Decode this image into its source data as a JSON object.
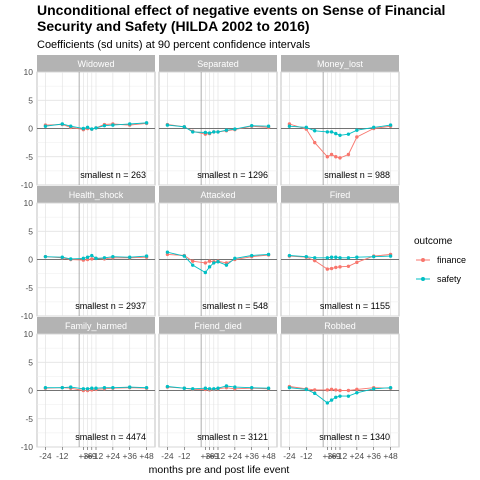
{
  "chart_data": {
    "type": "line",
    "title": "Unconditional effect of negative events on Sense of Financial Security and Safety (HILDA 2002 to 2016)",
    "title_lines": [
      "Unconditional effect of negative events on Sense of Financial",
      "Security and Safety (HILDA 2002 to 2016)"
    ],
    "subtitle": "Coefficients (sd units) at 90 percent confidence intervals",
    "xlabel": "months pre and post life event",
    "ylabel": "",
    "ylim": [
      -10,
      10
    ],
    "yticks": [
      -10,
      -5,
      0,
      5,
      10
    ],
    "xlim": [
      -30,
      54
    ],
    "x": [
      -24,
      -12,
      -6,
      3,
      6,
      9,
      12,
      18,
      24,
      36,
      48
    ],
    "xticks": [
      -24,
      -12,
      3,
      6,
      9,
      12,
      24,
      36,
      48
    ],
    "xtick_labels": [
      "-24",
      "-12",
      "+3",
      "+6",
      "+9",
      "+12",
      "+24",
      "+36",
      "+48"
    ],
    "event_line_x": 0,
    "grid": true,
    "legend": {
      "title": "outcome",
      "position": "right",
      "entries": [
        {
          "label": "finance",
          "color": "#F8766D"
        },
        {
          "label": "safety",
          "color": "#00BFC4"
        }
      ]
    },
    "panels": [
      {
        "name": "Widowed",
        "n_label": "smallest n = 263",
        "series": [
          {
            "name": "finance",
            "values": [
              0.6,
              0.7,
              0.2,
              -0.2,
              0.0,
              -0.1,
              0.1,
              0.7,
              0.8,
              0.6,
              0.9
            ]
          },
          {
            "name": "safety",
            "values": [
              0.4,
              0.8,
              0.4,
              0.0,
              0.2,
              -0.1,
              0.1,
              0.5,
              0.6,
              0.8,
              1.0
            ]
          }
        ]
      },
      {
        "name": "Separated",
        "n_label": "smallest n = 1296",
        "series": [
          {
            "name": "finance",
            "values": [
              0.7,
              0.3,
              -0.5,
              -1.0,
              -0.9,
              -0.6,
              -0.6,
              -0.4,
              -0.2,
              0.4,
              0.2
            ]
          },
          {
            "name": "safety",
            "values": [
              0.6,
              0.3,
              -0.6,
              -0.7,
              -0.8,
              -0.6,
              -0.6,
              -0.3,
              -0.1,
              0.5,
              0.4
            ]
          }
        ]
      },
      {
        "name": "Money_lost",
        "n_label": "smallest n = 988",
        "series": [
          {
            "name": "finance",
            "values": [
              0.8,
              -0.1,
              -2.5,
              -5.0,
              -4.6,
              -5.0,
              -5.2,
              -4.6,
              -1.5,
              0.0,
              0.4
            ]
          },
          {
            "name": "safety",
            "values": [
              0.4,
              0.2,
              -0.4,
              -0.6,
              -0.6,
              -0.9,
              -1.2,
              -1.0,
              -0.3,
              0.2,
              0.6
            ]
          }
        ]
      },
      {
        "name": "Health_shock",
        "n_label": "smallest n = 2937",
        "series": [
          {
            "name": "finance",
            "values": [
              0.5,
              0.3,
              0.0,
              -0.1,
              0.0,
              0.1,
              0.2,
              0.1,
              0.3,
              0.3,
              0.4
            ]
          },
          {
            "name": "safety",
            "values": [
              0.5,
              0.4,
              0.1,
              0.2,
              0.4,
              0.7,
              0.2,
              0.3,
              0.5,
              0.4,
              0.6
            ]
          }
        ]
      },
      {
        "name": "Attacked",
        "n_label": "smallest n = 548",
        "series": [
          {
            "name": "finance",
            "values": [
              0.9,
              0.7,
              -0.3,
              -0.6,
              -0.3,
              -0.4,
              -0.3,
              -0.6,
              0.0,
              0.5,
              0.8
            ]
          },
          {
            "name": "safety",
            "values": [
              1.3,
              0.6,
              -1.0,
              -2.3,
              -1.3,
              -0.6,
              -0.4,
              -1.0,
              0.2,
              0.7,
              0.9
            ]
          }
        ]
      },
      {
        "name": "Fired",
        "n_label": "smallest n = 1155",
        "series": [
          {
            "name": "finance",
            "values": [
              0.6,
              0.4,
              -0.2,
              -1.7,
              -1.6,
              -1.4,
              -1.3,
              -1.2,
              -0.5,
              0.6,
              0.9
            ]
          },
          {
            "name": "safety",
            "values": [
              0.7,
              0.5,
              0.3,
              0.3,
              0.4,
              0.4,
              0.3,
              0.3,
              0.4,
              0.5,
              0.6
            ]
          }
        ]
      },
      {
        "name": "Family_harmed",
        "n_label": "smallest n = 4474",
        "series": [
          {
            "name": "finance",
            "values": [
              0.4,
              0.5,
              0.4,
              0.0,
              0.0,
              0.1,
              0.2,
              0.3,
              0.4,
              0.5,
              0.4
            ]
          },
          {
            "name": "safety",
            "values": [
              0.5,
              0.5,
              0.6,
              0.3,
              0.3,
              0.4,
              0.4,
              0.5,
              0.5,
              0.6,
              0.5
            ]
          }
        ]
      },
      {
        "name": "Friend_died",
        "n_label": "smallest n = 3121",
        "series": [
          {
            "name": "finance",
            "values": [
              0.6,
              0.4,
              0.2,
              0.2,
              0.1,
              0.2,
              0.3,
              0.5,
              0.3,
              0.4,
              0.3
            ]
          },
          {
            "name": "safety",
            "values": [
              0.7,
              0.4,
              0.3,
              0.4,
              0.3,
              0.3,
              0.4,
              0.8,
              0.6,
              0.5,
              0.4
            ]
          }
        ]
      },
      {
        "name": "Robbed",
        "n_label": "smallest n = 1340",
        "series": [
          {
            "name": "finance",
            "values": [
              0.7,
              0.3,
              0.1,
              0.1,
              0.2,
              0.1,
              0.0,
              0.0,
              0.2,
              0.5,
              0.4
            ]
          },
          {
            "name": "safety",
            "values": [
              0.5,
              0.2,
              -0.5,
              -2.2,
              -1.7,
              -1.2,
              -1.0,
              -1.0,
              -0.4,
              0.3,
              0.5
            ]
          }
        ]
      }
    ]
  }
}
